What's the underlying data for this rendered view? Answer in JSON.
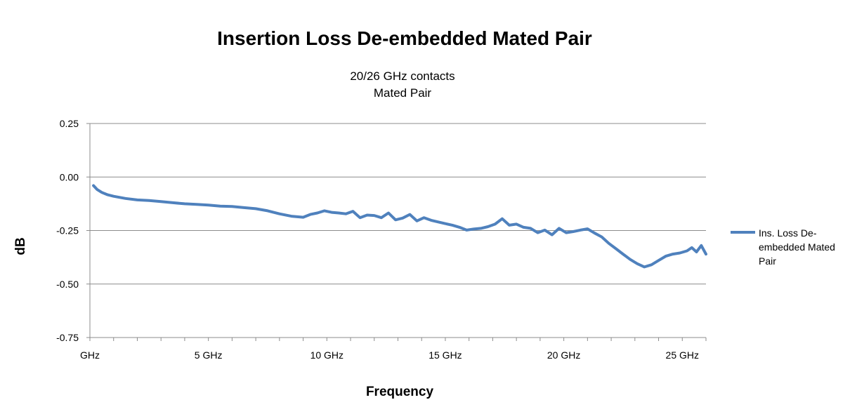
{
  "chart_data": {
    "type": "line",
    "title": "Insertion Loss De-embedded Mated Pair",
    "subtitle_lines": [
      "20/26 GHz contacts",
      "Mated Pair"
    ],
    "xlabel": "Frequency",
    "ylabel": "dB",
    "xlim": [
      0,
      26
    ],
    "ylim": [
      -0.75,
      0.25
    ],
    "y_ticks": [
      0.25,
      0.0,
      -0.25,
      -0.5,
      -0.75
    ],
    "y_tick_labels": [
      "0.25",
      "0.00",
      "-0.25",
      "-0.50",
      "-0.75"
    ],
    "x_tick_values": [
      0,
      5,
      10,
      15,
      20,
      25
    ],
    "x_tick_labels": [
      "GHz",
      "5 GHz",
      "10 GHz",
      "15 GHz",
      "20 GHz",
      "25 GHz"
    ],
    "x_minor_ticks_per_ghz": 1,
    "grid": "horizontal",
    "legend_position": "right",
    "series_color": "#4F81BD",
    "series": [
      {
        "name_lines": [
          "Ins. Loss De-",
          "embedded Mated",
          "Pair"
        ],
        "x": [
          0.15,
          0.3,
          0.5,
          0.75,
          1.0,
          1.5,
          2.0,
          2.5,
          3.0,
          3.5,
          4.0,
          4.5,
          5.0,
          5.5,
          6.0,
          6.5,
          7.0,
          7.5,
          8.0,
          8.5,
          9.0,
          9.3,
          9.6,
          9.9,
          10.2,
          10.5,
          10.8,
          11.1,
          11.4,
          11.7,
          12.0,
          12.3,
          12.6,
          12.9,
          13.2,
          13.5,
          13.8,
          14.1,
          14.4,
          14.7,
          15.0,
          15.3,
          15.6,
          15.9,
          16.2,
          16.5,
          16.8,
          17.1,
          17.4,
          17.7,
          18.0,
          18.3,
          18.6,
          18.9,
          19.2,
          19.5,
          19.8,
          20.1,
          20.4,
          20.7,
          21.0,
          21.3,
          21.6,
          21.9,
          22.2,
          22.5,
          22.8,
          23.1,
          23.4,
          23.7,
          24.0,
          24.3,
          24.6,
          24.9,
          25.2,
          25.4,
          25.6,
          25.8,
          26.0
        ],
        "y": [
          -0.04,
          -0.058,
          -0.072,
          -0.083,
          -0.09,
          -0.1,
          -0.107,
          -0.11,
          -0.115,
          -0.12,
          -0.125,
          -0.128,
          -0.131,
          -0.136,
          -0.138,
          -0.143,
          -0.148,
          -0.158,
          -0.172,
          -0.183,
          -0.188,
          -0.175,
          -0.168,
          -0.158,
          -0.165,
          -0.168,
          -0.172,
          -0.16,
          -0.19,
          -0.178,
          -0.18,
          -0.19,
          -0.168,
          -0.2,
          -0.192,
          -0.175,
          -0.205,
          -0.19,
          -0.202,
          -0.21,
          -0.218,
          -0.225,
          -0.235,
          -0.248,
          -0.243,
          -0.24,
          -0.232,
          -0.22,
          -0.195,
          -0.225,
          -0.22,
          -0.235,
          -0.24,
          -0.26,
          -0.248,
          -0.27,
          -0.24,
          -0.26,
          -0.255,
          -0.248,
          -0.242,
          -0.262,
          -0.28,
          -0.31,
          -0.335,
          -0.36,
          -0.385,
          -0.405,
          -0.42,
          -0.41,
          -0.39,
          -0.37,
          -0.36,
          -0.355,
          -0.345,
          -0.33,
          -0.35,
          -0.32,
          -0.36
        ]
      }
    ]
  }
}
